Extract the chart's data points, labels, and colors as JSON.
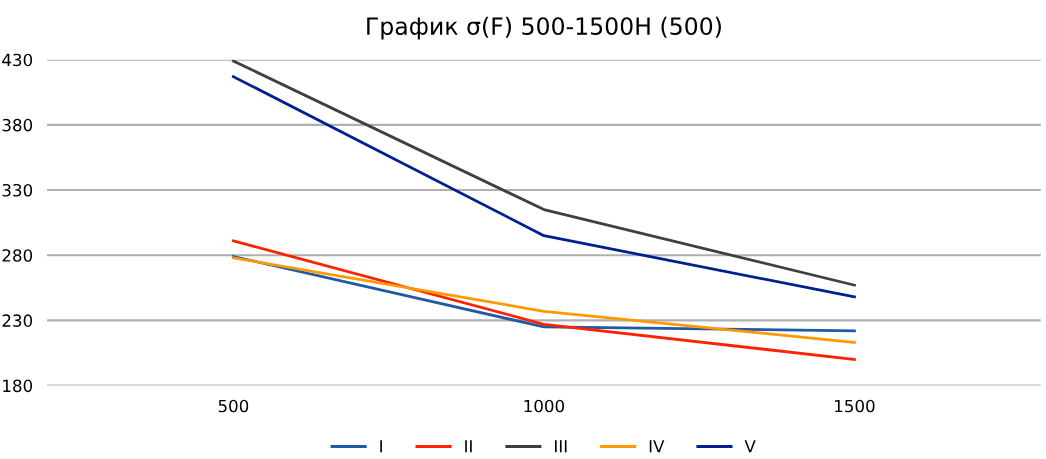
{
  "chart_data": {
    "type": "line",
    "title": "График σ(F) 500-1500Н (500)",
    "categories": [
      "500",
      "1000",
      "1500"
    ],
    "series": [
      {
        "name": "I",
        "color": "#1f5aa6",
        "values": [
          279,
          225,
          222
        ]
      },
      {
        "name": "II",
        "color": "#ff2200",
        "values": [
          291,
          227,
          200
        ]
      },
      {
        "name": "III",
        "color": "#404040",
        "values": [
          429,
          315,
          257
        ]
      },
      {
        "name": "IV",
        "color": "#ff9900",
        "values": [
          278,
          237,
          213
        ]
      },
      {
        "name": "V",
        "color": "#00208f",
        "values": [
          417,
          295,
          248
        ]
      }
    ],
    "ylim": [
      180,
      430
    ],
    "yticks": [
      180,
      230,
      280,
      330,
      380,
      430
    ],
    "grid": "y",
    "legend": "bottom",
    "marker": "none",
    "line_style": "solid"
  }
}
